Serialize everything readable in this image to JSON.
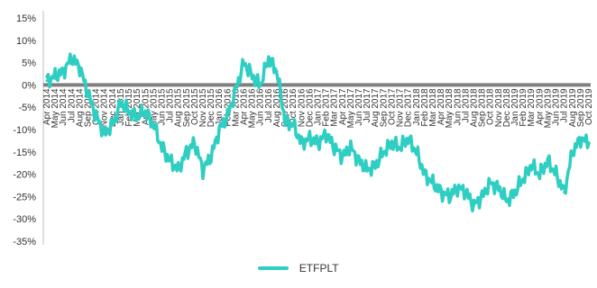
{
  "chart_data": {
    "type": "line",
    "ylabel": "",
    "xlabel": "",
    "ylim": [
      -35,
      15
    ],
    "y_ticks": [
      15,
      10,
      5,
      0,
      -5,
      -10,
      -15,
      -20,
      -25,
      -30,
      -35
    ],
    "y_tick_labels": [
      "15%",
      "10%",
      "5%",
      "0%",
      "-5%",
      "-10%",
      "-15%",
      "-20%",
      "-25%",
      "-30%",
      "-35%"
    ],
    "x_tick_labels": [
      "Apr 2014",
      "May 2014",
      "Jun 2014",
      "Jul 2014",
      "Aug 2014",
      "Sep 2014",
      "Oct 2014",
      "Nov 2014",
      "Dec 2014",
      "Jan 2015",
      "Feb 2015",
      "Mar 2015",
      "Apr 2015",
      "May 2015",
      "Jun 2015",
      "Jul 2015",
      "Aug 2015",
      "Sep 2015",
      "Oct 2015",
      "Nov 2015",
      "Dec 2015",
      "Jan 2016",
      "Feb 2016",
      "Mar 2016",
      "Apr 2016",
      "May 2016",
      "Jun 2016",
      "Jul 2016",
      "Aug 2016",
      "Sep 2016",
      "Oct 2016",
      "Nov 2016",
      "Dec 2016",
      "Jan 2017",
      "Feb 2017",
      "Mar 2017",
      "Apr 2017",
      "May 2017",
      "Jun 2017",
      "Jul 2017",
      "Aug 2017",
      "Sep 2017",
      "Oct 2017",
      "Nov 2017",
      "Dec 2017",
      "Jan 2018",
      "Feb 2018",
      "Mar 2018",
      "Apr 2018",
      "May 2018",
      "Jun 2018",
      "Jul 2018",
      "Aug 2018",
      "Sep 2018",
      "Oct 2018",
      "Nov 2018",
      "Dec 2018",
      "Jan 2019",
      "Feb 2019",
      "Mar 2019",
      "Apr 2019",
      "May 2019",
      "Jun 2019",
      "Jul 2019",
      "Aug 2019",
      "Sep 2019",
      "Oct 2019"
    ],
    "zero_line": true,
    "legend_position": "bottom",
    "colors": {
      "series": "#2ecec2",
      "zero_line": "#7f7f7f",
      "axis": "#bfbfbf"
    },
    "series": [
      {
        "name": "ETFPLT",
        "x": [
          "2014-04",
          "2014-05",
          "2014-06",
          "2014-07",
          "2014-08",
          "2014-09",
          "2014-10",
          "2014-11",
          "2014-12",
          "2015-01",
          "2015-02",
          "2015-03",
          "2015-04",
          "2015-05",
          "2015-06",
          "2015-07",
          "2015-08",
          "2015-09",
          "2015-10",
          "2015-11",
          "2015-12",
          "2016-01",
          "2016-02",
          "2016-03",
          "2016-04",
          "2016-05",
          "2016-06",
          "2016-07",
          "2016-08",
          "2016-09",
          "2016-10",
          "2016-11",
          "2016-12",
          "2017-01",
          "2017-02",
          "2017-03",
          "2017-04",
          "2017-05",
          "2017-06",
          "2017-07",
          "2017-08",
          "2017-09",
          "2017-10",
          "2017-11",
          "2017-12",
          "2018-01",
          "2018-02",
          "2018-03",
          "2018-04",
          "2018-05",
          "2018-06",
          "2018-07",
          "2018-08",
          "2018-09",
          "2018-10",
          "2018-11",
          "2018-12",
          "2019-01",
          "2019-02",
          "2019-03",
          "2019-04",
          "2019-05",
          "2019-06",
          "2019-07",
          "2019-08",
          "2019-09",
          "2019-10"
        ],
        "values": [
          1,
          2,
          3,
          6,
          4,
          -2,
          -7,
          -11,
          -9,
          -4,
          -6,
          -7,
          -6,
          -9,
          -14,
          -17,
          -19,
          -15,
          -13,
          -19,
          -16,
          -10,
          -7,
          -1,
          5,
          2,
          0,
          6,
          3,
          -8,
          -9,
          -13,
          -12,
          -13,
          -11,
          -14,
          -16,
          -14,
          -17,
          -19,
          -18,
          -15,
          -13,
          -14,
          -12,
          -15,
          -20,
          -22,
          -24,
          -25,
          -23,
          -24,
          -27,
          -25,
          -22,
          -23,
          -26,
          -24,
          -21,
          -18,
          -20,
          -17,
          -20,
          -24,
          -15,
          -12,
          -13
        ]
      }
    ]
  },
  "legend": {
    "label": "ETFPLT"
  }
}
